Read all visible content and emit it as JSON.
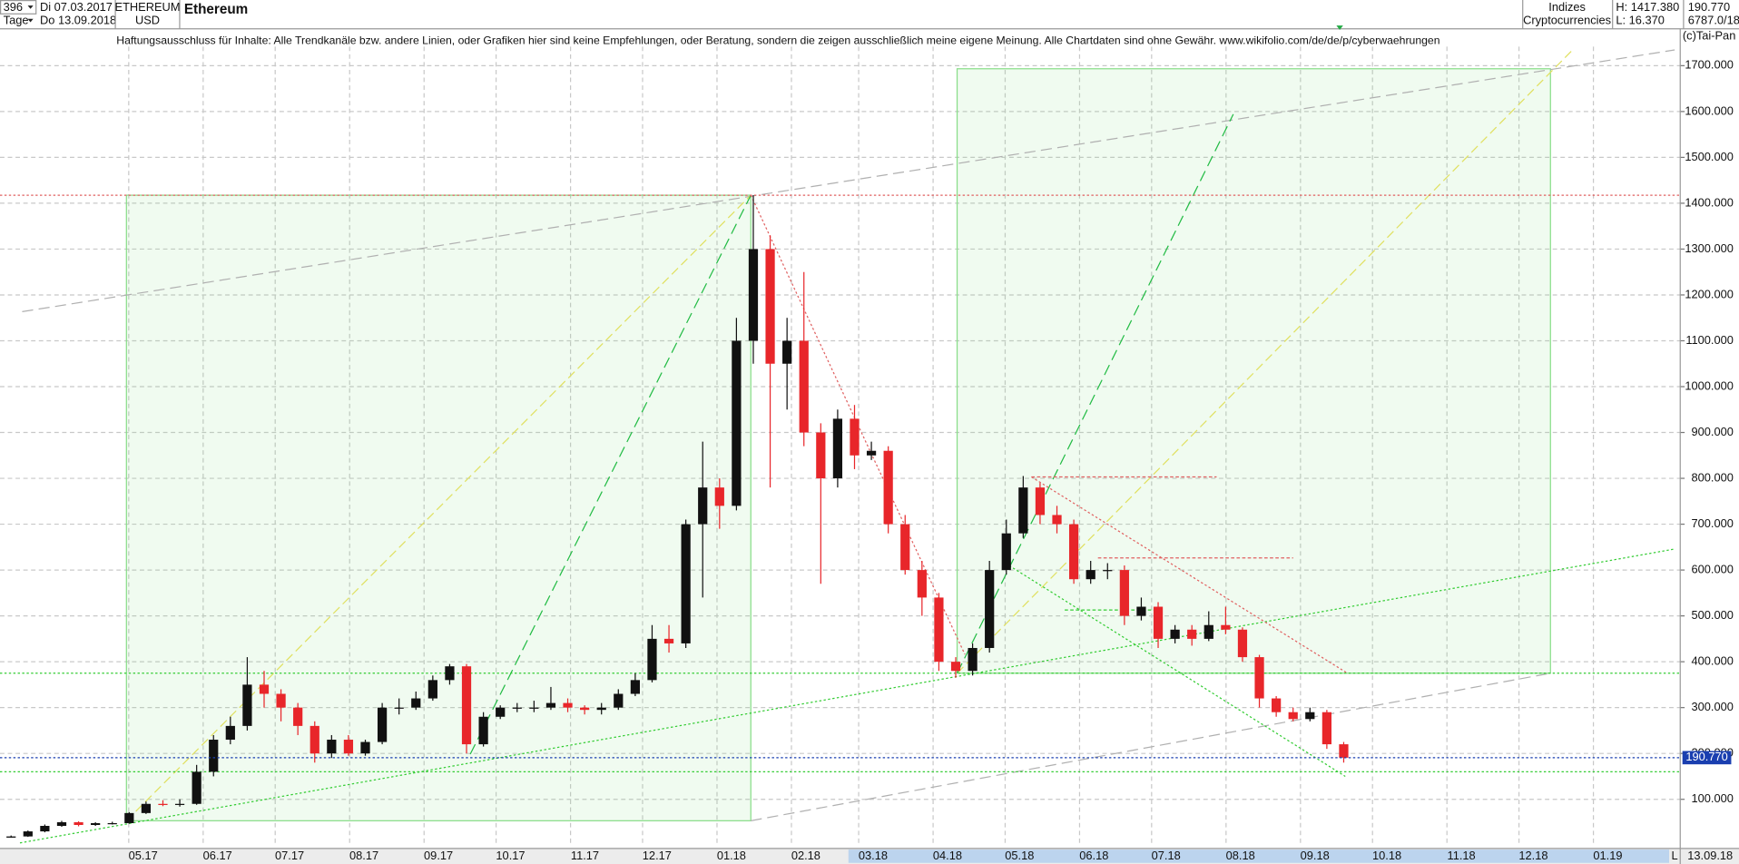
{
  "header": {
    "count": "396",
    "start": "Di 07.03.2017",
    "unit": "Tage",
    "end": "Do 13.09.2018",
    "symbol": "ETHEREUM",
    "currency": "USD",
    "name": "Ethereum",
    "group": "Indizes",
    "sector": "Cryptocurrencies",
    "high": "H: 1417.380",
    "low": "L: 16.370",
    "last": "190.770",
    "info": "6787.0/18",
    "copyright": "(c)Tai-Pan",
    "disclaimer": "Haftungsausschluss für Inhalte: Alle Trendkanäle bzw. andere Linien, oder Grafiken hier sind keine Empfehlungen, oder Beratung, sondern die zeigen ausschließlich meine eigene Meinung. Alle Chartdaten sind ohne Gewähr.  www.wikifolio.com/de/de/p/cyberwaehrungen",
    "corner": "L",
    "end_short": "13.09.18"
  },
  "chart_data": {
    "type": "candlestick",
    "open": [
      16.37,
      19,
      30,
      42,
      50,
      44,
      48,
      48,
      70,
      90,
      88,
      90,
      160,
      230,
      260,
      350,
      330,
      300,
      260,
      200,
      230,
      200,
      225,
      300,
      300,
      320,
      360,
      390,
      220,
      280,
      300,
      300,
      300,
      310,
      300,
      295,
      300,
      330,
      360,
      450,
      440,
      700,
      780,
      740,
      1100,
      1300,
      1050,
      1100,
      900,
      800,
      930,
      850,
      860,
      700,
      600,
      540,
      400,
      380,
      430,
      600,
      680,
      780,
      720,
      700,
      580,
      600,
      600,
      500,
      520,
      450,
      470,
      450,
      480,
      470,
      410,
      320,
      290,
      275,
      290,
      220
    ],
    "high": [
      21,
      32,
      45,
      53,
      52,
      50,
      51,
      72,
      95,
      98,
      100,
      175,
      240,
      280,
      410,
      380,
      340,
      310,
      270,
      240,
      240,
      230,
      310,
      320,
      335,
      370,
      395,
      395,
      290,
      305,
      310,
      315,
      345,
      320,
      305,
      310,
      340,
      375,
      480,
      480,
      710,
      880,
      800,
      1150,
      1417.38,
      1330,
      1150,
      1250,
      920,
      950,
      960,
      880,
      870,
      720,
      620,
      550,
      410,
      440,
      620,
      710,
      805,
      790,
      740,
      710,
      620,
      615,
      610,
      540,
      530,
      480,
      480,
      510,
      520,
      475,
      415,
      325,
      300,
      300,
      295,
      225
    ],
    "low": [
      16.37,
      18,
      28,
      40,
      41,
      42,
      45,
      47,
      68,
      85,
      84,
      88,
      150,
      220,
      250,
      300,
      270,
      240,
      180,
      190,
      195,
      195,
      220,
      285,
      295,
      315,
      350,
      200,
      215,
      275,
      290,
      290,
      295,
      290,
      285,
      285,
      295,
      325,
      355,
      420,
      430,
      540,
      690,
      730,
      1050,
      780,
      950,
      870,
      570,
      780,
      820,
      840,
      680,
      590,
      500,
      380,
      365,
      370,
      420,
      590,
      670,
      700,
      680,
      570,
      570,
      580,
      480,
      490,
      430,
      440,
      435,
      445,
      460,
      400,
      300,
      280,
      270,
      270,
      210,
      180
    ],
    "close": [
      19,
      30,
      42,
      50,
      44,
      48,
      48,
      70,
      90,
      88,
      90,
      160,
      230,
      260,
      350,
      330,
      300,
      260,
      200,
      230,
      200,
      225,
      300,
      300,
      320,
      360,
      390,
      220,
      280,
      300,
      300,
      300,
      310,
      300,
      295,
      300,
      330,
      360,
      450,
      440,
      700,
      780,
      740,
      1100,
      1300,
      1050,
      1100,
      900,
      800,
      930,
      850,
      860,
      700,
      600,
      540,
      400,
      380,
      430,
      600,
      680,
      780,
      720,
      700,
      580,
      600,
      600,
      500,
      520,
      450,
      470,
      450,
      480,
      470,
      410,
      320,
      290,
      275,
      290,
      220,
      190.77
    ],
    "x_labels": [
      "05.17",
      "06.17",
      "07.17",
      "08.17",
      "09.17",
      "10.17",
      "11.17",
      "12.17",
      "01.18",
      "02.18",
      "03.18",
      "04.18",
      "05.18",
      "06.18",
      "07.18",
      "08.18",
      "09.18",
      "10.18",
      "11.18",
      "12.18",
      "01.19"
    ],
    "ylim": [
      0,
      1790
    ],
    "yticks": [
      {
        "value": 100,
        "label": "100.000"
      },
      {
        "value": 200,
        "label": "200.000"
      },
      {
        "value": 300,
        "label": "300.000"
      },
      {
        "value": 400,
        "label": "400.000"
      },
      {
        "value": 500,
        "label": "500.000"
      },
      {
        "value": 600,
        "label": "600.000"
      },
      {
        "value": 700,
        "label": "700.000"
      },
      {
        "value": 800,
        "label": "800.000"
      },
      {
        "value": 900,
        "label": "900.000"
      },
      {
        "value": 1000,
        "label": "1000.000"
      },
      {
        "value": 1100,
        "label": "1100.000"
      },
      {
        "value": 1200,
        "label": "1200.000"
      },
      {
        "value": 1300,
        "label": "1300.000"
      },
      {
        "value": 1400,
        "label": "1400.000"
      },
      {
        "value": 1500,
        "label": "1500.000"
      },
      {
        "value": 1600,
        "label": "1600.000"
      },
      {
        "value": 1700,
        "label": "1700.000"
      }
    ],
    "grid": true,
    "up_color": "#111111",
    "down_color": "#e8262a",
    "last_color": "#1a3fb0",
    "price_label": "190.770",
    "levels": [
      {
        "value": 1417.38,
        "color": "#e06060"
      },
      {
        "value": 375,
        "color": "#33cc33"
      },
      {
        "value": 160,
        "color": "#33cc33"
      }
    ]
  }
}
